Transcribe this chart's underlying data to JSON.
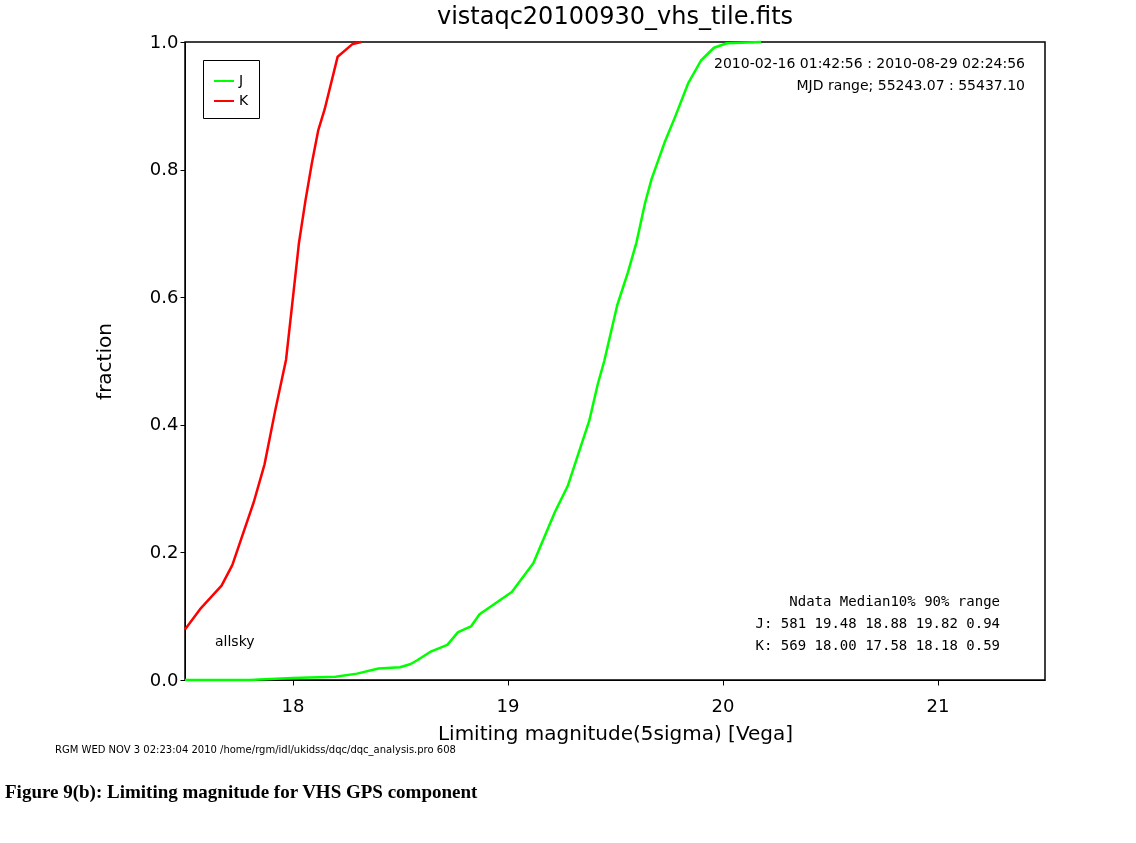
{
  "chart_data": {
    "type": "line",
    "title": "vistaqc20100930_vhs_tile.fits",
    "xlabel": "Limiting magnitude(5sigma) [Vega]",
    "ylabel": "fraction",
    "xlim": [
      17.5,
      21.5
    ],
    "xticks": [
      18,
      19,
      20,
      21
    ],
    "ylim": [
      0,
      1
    ],
    "yticks": [
      {
        "value": 0,
        "label": "0.0"
      },
      0.2,
      0.4,
      0.6,
      0.8,
      {
        "value": 1,
        "label": "1.0"
      }
    ],
    "legend": "top left",
    "grid": false,
    "series": [
      {
        "name": "J",
        "color": "#00ff00",
        "x": [
          17.5,
          17.8,
          18.0,
          18.2,
          18.3,
          18.4,
          18.5,
          18.55,
          18.58,
          18.64,
          18.72,
          18.77,
          18.83,
          18.87,
          19.02,
          19.12,
          19.22,
          19.28,
          19.38,
          19.42,
          19.45,
          19.51,
          19.56,
          19.6,
          19.64,
          19.67,
          19.73,
          19.78,
          19.84,
          19.9,
          19.96,
          20.02,
          20.18
        ],
        "values": [
          0.0,
          0.0,
          0.003,
          0.005,
          0.01,
          0.018,
          0.02,
          0.025,
          0.031,
          0.044,
          0.055,
          0.075,
          0.084,
          0.103,
          0.138,
          0.183,
          0.263,
          0.304,
          0.406,
          0.464,
          0.5,
          0.587,
          0.639,
          0.686,
          0.748,
          0.785,
          0.842,
          0.883,
          0.935,
          0.971,
          0.991,
          0.998,
          1.0
        ]
      },
      {
        "name": "K",
        "color": "#ff0000",
        "x": [
          17.5,
          17.57,
          17.67,
          17.72,
          17.82,
          17.87,
          17.92,
          17.97,
          18.0,
          18.03,
          18.06,
          18.09,
          18.12,
          18.15,
          18.21,
          18.28,
          18.32
        ],
        "values": [
          0.079,
          0.111,
          0.148,
          0.18,
          0.279,
          0.338,
          0.423,
          0.502,
          0.593,
          0.685,
          0.751,
          0.81,
          0.862,
          0.895,
          0.977,
          0.997,
          1.0
        ]
      }
    ],
    "annotations": [
      "2010-02-16 01:42:56 : 2010-08-29 02:24:56",
      "MJD range; 55243.07 : 55437.10",
      "allsky",
      "Ndata Median10% 90% range",
      "J: 581 19.48 18.88 19.82 0.94",
      "K: 569 18.00 17.58 18.18 0.59",
      "RGM WED NOV 3 02:23:04 2010 /home/rgm/idl/ukidss/dqc/dqc_analysis.pro 608",
      "Figure 9(b): Limiting magnitude for VHS GPS component"
    ]
  }
}
